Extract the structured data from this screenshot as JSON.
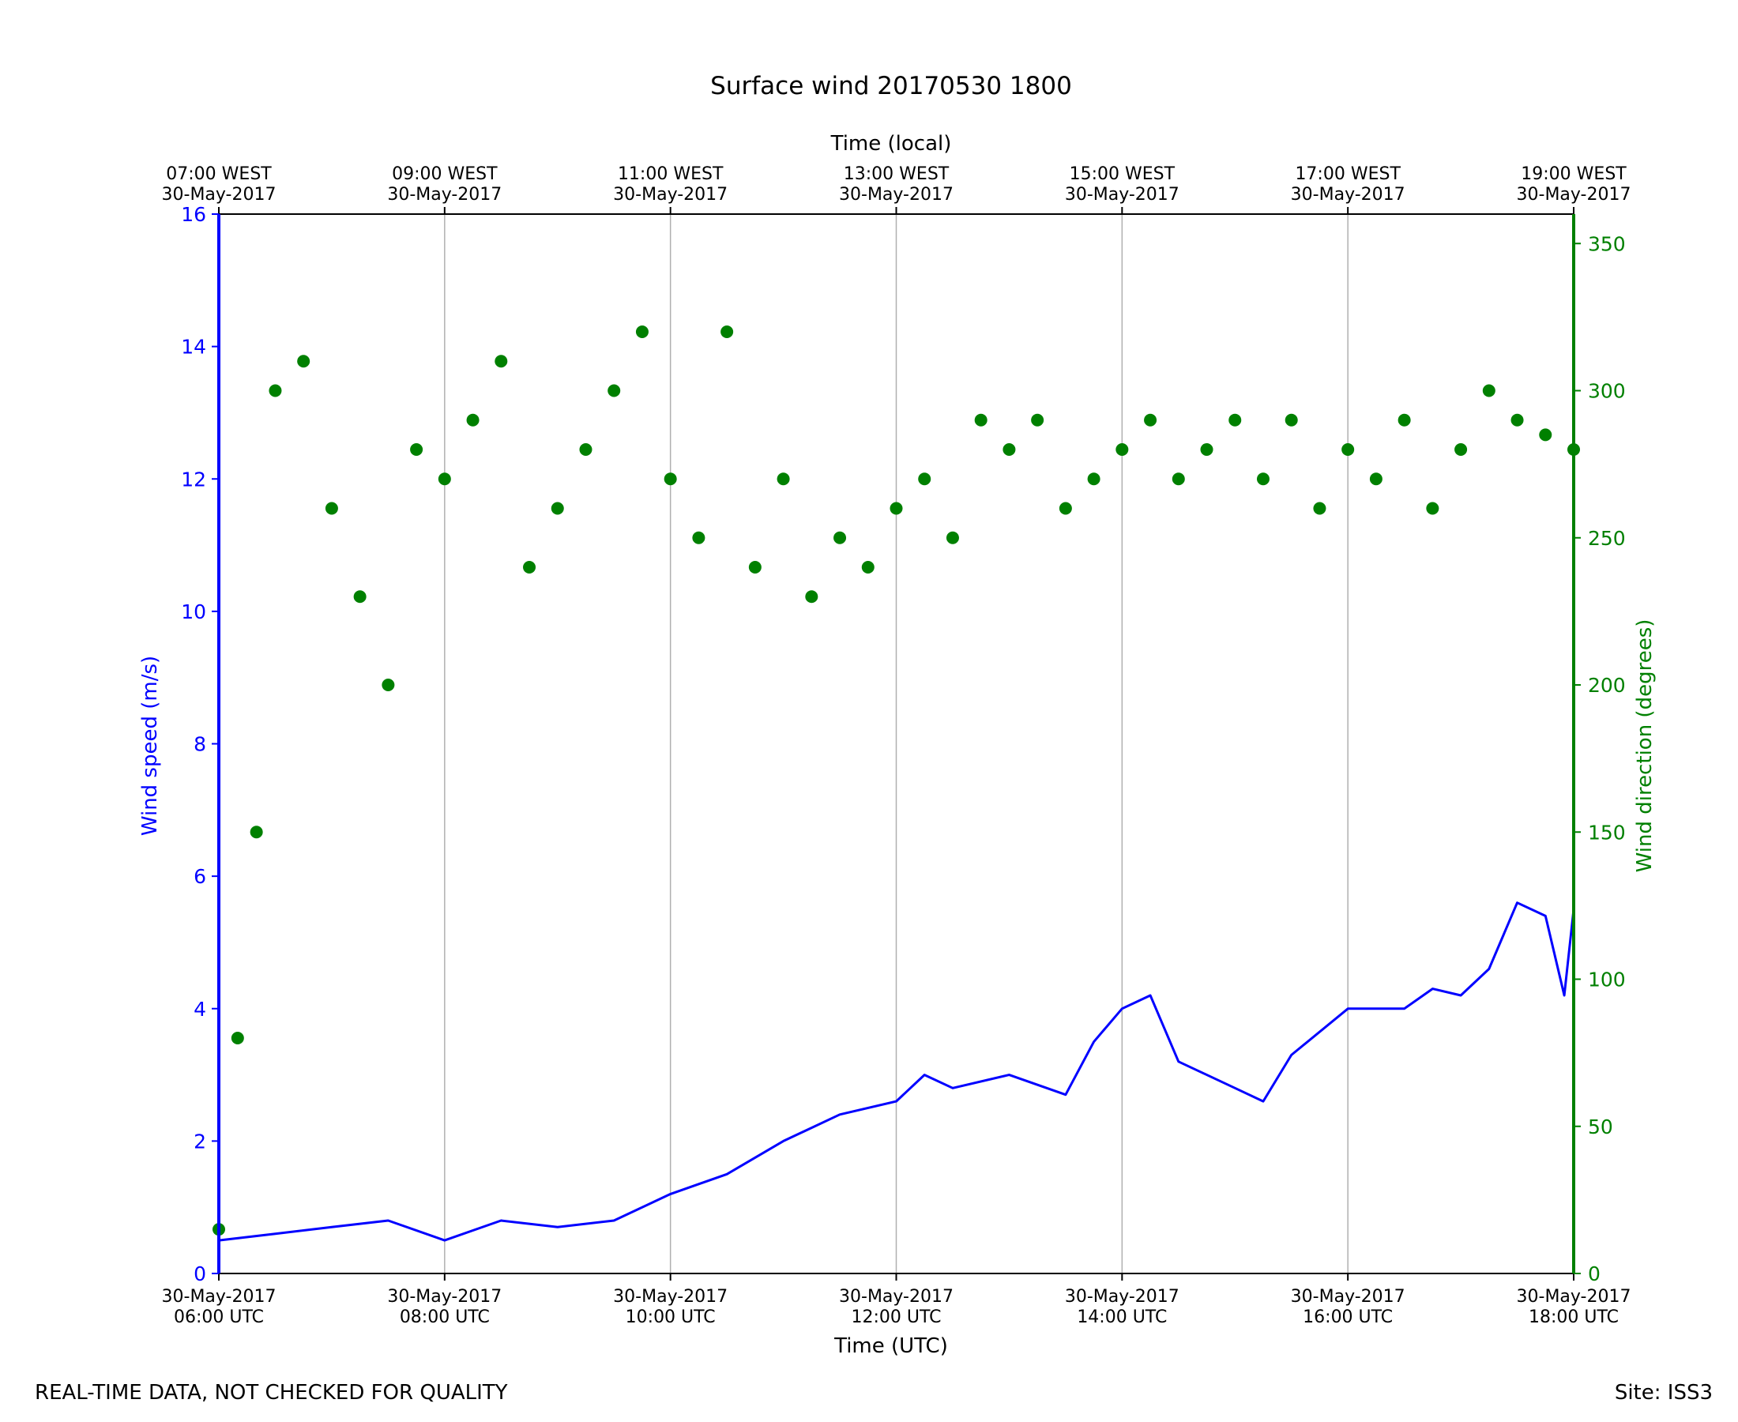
{
  "chart_data": {
    "type": "line+scatter",
    "title": "Surface wind 20170530 1800",
    "xlabel": "Time (UTC)",
    "x2label": "Time (local)",
    "ylabel": "Wind speed (m/s)",
    "y2label": "Wind direction (degrees)",
    "xlim": [
      "2017-05-30 06:00",
      "2017-05-30 18:00"
    ],
    "ylim": [
      0,
      16
    ],
    "y2lim": [
      0,
      360
    ],
    "yticks": [
      "0",
      "2",
      "4",
      "6",
      "8",
      "10",
      "12",
      "14",
      "16"
    ],
    "y2ticks": [
      "0",
      "50",
      "100",
      "150",
      "200",
      "250",
      "300",
      "350"
    ],
    "xticks": [
      {
        "date": "30-May-2017",
        "time": "06:00 UTC"
      },
      {
        "date": "30-May-2017",
        "time": "08:00 UTC"
      },
      {
        "date": "30-May-2017",
        "time": "10:00 UTC"
      },
      {
        "date": "30-May-2017",
        "time": "12:00 UTC"
      },
      {
        "date": "30-May-2017",
        "time": "14:00 UTC"
      },
      {
        "date": "30-May-2017",
        "time": "16:00 UTC"
      },
      {
        "date": "30-May-2017",
        "time": "18:00 UTC"
      }
    ],
    "x2ticks": [
      {
        "time": "07:00 WEST",
        "date": "30-May-2017"
      },
      {
        "time": "09:00 WEST",
        "date": "30-May-2017"
      },
      {
        "time": "11:00 WEST",
        "date": "30-May-2017"
      },
      {
        "time": "13:00 WEST",
        "date": "30-May-2017"
      },
      {
        "time": "15:00 WEST",
        "date": "30-May-2017"
      },
      {
        "time": "17:00 WEST",
        "date": "30-May-2017"
      },
      {
        "time": "19:00 WEST",
        "date": "30-May-2017"
      }
    ],
    "grid": "vertical",
    "speed_color": "#0000ff",
    "direction_color": "#008000",
    "speed": {
      "x": [
        "06:00",
        "06:30",
        "07:00",
        "07:30",
        "08:00",
        "08:30",
        "09:00",
        "09:30",
        "10:00",
        "10:30",
        "11:00",
        "11:15",
        "11:30",
        "12:00",
        "12:15",
        "12:30",
        "13:00",
        "13:30",
        "13:45",
        "14:00",
        "14:15",
        "14:30",
        "15:00",
        "15:15",
        "15:30",
        "16:00",
        "16:30",
        "16:45",
        "17:00",
        "17:15",
        "17:30",
        "17:45",
        "17:55",
        "18:00"
      ],
      "y": [
        0.5,
        0.6,
        0.7,
        0.8,
        0.5,
        0.8,
        0.7,
        0.8,
        1.2,
        1.5,
        2.0,
        2.2,
        2.4,
        2.6,
        3.0,
        2.8,
        3.0,
        2.7,
        3.5,
        4.0,
        4.2,
        3.2,
        2.8,
        2.6,
        3.3,
        4.0,
        4.0,
        4.3,
        4.2,
        4.6,
        5.6,
        5.4,
        4.2,
        5.5
      ]
    },
    "direction": {
      "x": [
        "06:00",
        "06:10",
        "06:20",
        "06:30",
        "06:45",
        "07:00",
        "07:15",
        "07:30",
        "07:45",
        "08:00",
        "08:15",
        "08:30",
        "08:45",
        "09:00",
        "09:15",
        "09:30",
        "09:45",
        "10:00",
        "10:15",
        "10:30",
        "10:45",
        "11:00",
        "11:15",
        "11:30",
        "11:45",
        "12:00",
        "12:15",
        "12:30",
        "12:45",
        "13:00",
        "13:15",
        "13:30",
        "13:45",
        "14:00",
        "14:15",
        "14:30",
        "14:45",
        "15:00",
        "15:15",
        "15:30",
        "15:45",
        "16:00",
        "16:15",
        "16:30",
        "16:45",
        "17:00",
        "17:15",
        "17:30",
        "17:45",
        "18:00"
      ],
      "y": [
        15,
        80,
        150,
        300,
        310,
        260,
        230,
        200,
        280,
        270,
        290,
        310,
        240,
        260,
        280,
        300,
        320,
        270,
        250,
        320,
        240,
        270,
        230,
        250,
        240,
        260,
        270,
        250,
        290,
        280,
        290,
        260,
        270,
        280,
        290,
        270,
        280,
        290,
        270,
        290,
        260,
        280,
        270,
        290,
        260,
        280,
        300,
        290,
        285,
        280
      ]
    }
  },
  "footer": {
    "left": "REAL-TIME DATA, NOT CHECKED FOR QUALITY",
    "right": "Site: ISS3"
  }
}
